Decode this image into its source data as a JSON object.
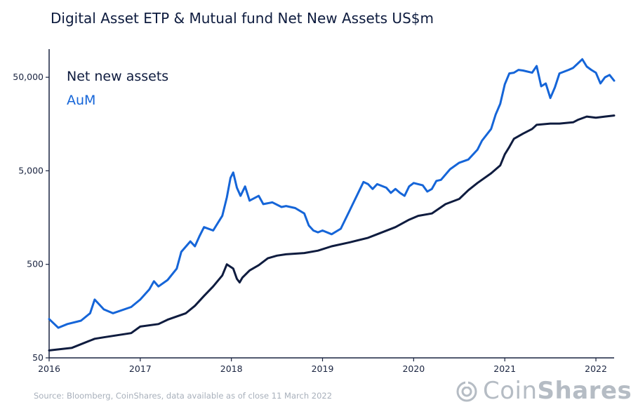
{
  "title": "Digital Asset ETP & Mutual fund Net New Assets US$m",
  "source": "Source: Bloomberg, CoinShares, data available as of close 11 March 2022",
  "logo": {
    "prefix": "Coin",
    "suffix": "Shares"
  },
  "colors": {
    "net_new_assets": "#0f1c3f",
    "aum": "#1565d8",
    "axis": "#1a2440"
  },
  "chart_data": {
    "type": "line",
    "title": "Digital Asset ETP & Mutual fund Net New Assets US$m",
    "y_scale": "log",
    "ylim": [
      50,
      100000
    ],
    "yticks": [
      50,
      500,
      5000,
      50000
    ],
    "ytick_labels": [
      "50",
      "500",
      "5,000",
      "50,000"
    ],
    "xlim": [
      2016.0,
      2022.2
    ],
    "xticks": [
      2016,
      2017,
      2018,
      2019,
      2020,
      2021,
      2022
    ],
    "xtick_labels": [
      "2016",
      "2017",
      "2018",
      "2019",
      "2020",
      "2021",
      "2022"
    ],
    "grid": false,
    "legend": "top-left",
    "series": [
      {
        "name": "Net new assets",
        "x": [
          2016.0,
          2016.25,
          2016.5,
          2016.6,
          2016.9,
          2017.0,
          2017.2,
          2017.3,
          2017.5,
          2017.6,
          2017.7,
          2017.8,
          2017.9,
          2017.95,
          2018.02,
          2018.06,
          2018.09,
          2018.12,
          2018.2,
          2018.3,
          2018.4,
          2018.5,
          2018.6,
          2018.8,
          2018.95,
          2019.1,
          2019.3,
          2019.5,
          2019.6,
          2019.8,
          2019.95,
          2020.05,
          2020.2,
          2020.35,
          2020.5,
          2020.6,
          2020.7,
          2020.85,
          2020.95,
          2021.0,
          2021.05,
          2021.1,
          2021.2,
          2021.3,
          2021.35,
          2021.5,
          2021.6,
          2021.75,
          2021.8,
          2021.9,
          2022.0,
          2022.1,
          2022.2
        ],
        "y": [
          60,
          64,
          80,
          83,
          92,
          108,
          115,
          128,
          150,
          180,
          230,
          290,
          380,
          500,
          450,
          350,
          320,
          360,
          430,
          490,
          580,
          620,
          640,
          660,
          700,
          780,
          860,
          960,
          1050,
          1250,
          1500,
          1650,
          1750,
          2200,
          2500,
          3100,
          3700,
          4700,
          5700,
          7500,
          9000,
          11000,
          12500,
          14000,
          15500,
          16000,
          16000,
          16500,
          17500,
          19000,
          18500,
          19000,
          19500
        ]
      },
      {
        "name": "AuM",
        "x": [
          2016.0,
          2016.1,
          2016.2,
          2016.35,
          2016.45,
          2016.5,
          2016.6,
          2016.7,
          2016.9,
          2017.0,
          2017.1,
          2017.15,
          2017.2,
          2017.3,
          2017.4,
          2017.45,
          2017.55,
          2017.6,
          2017.65,
          2017.7,
          2017.8,
          2017.9,
          2017.95,
          2017.99,
          2018.02,
          2018.06,
          2018.1,
          2018.15,
          2018.2,
          2018.3,
          2018.35,
          2018.45,
          2018.55,
          2018.6,
          2018.7,
          2018.8,
          2018.85,
          2018.9,
          2018.95,
          2019.0,
          2019.1,
          2019.2,
          2019.3,
          2019.35,
          2019.45,
          2019.5,
          2019.55,
          2019.6,
          2019.7,
          2019.75,
          2019.8,
          2019.85,
          2019.9,
          2019.95,
          2020.0,
          2020.1,
          2020.15,
          2020.2,
          2020.25,
          2020.3,
          2020.4,
          2020.5,
          2020.6,
          2020.7,
          2020.75,
          2020.85,
          2020.9,
          2020.95,
          2021.0,
          2021.05,
          2021.1,
          2021.15,
          2021.2,
          2021.3,
          2021.35,
          2021.4,
          2021.45,
          2021.5,
          2021.55,
          2021.6,
          2021.7,
          2021.75,
          2021.8,
          2021.85,
          2021.9,
          2021.95,
          2022.0,
          2022.05,
          2022.1,
          2022.15,
          2022.2
        ],
        "y": [
          130,
          105,
          115,
          125,
          150,
          210,
          165,
          150,
          175,
          210,
          270,
          330,
          290,
          340,
          450,
          680,
          880,
          780,
          1000,
          1250,
          1150,
          1650,
          2600,
          4200,
          4800,
          3300,
          2700,
          3400,
          2400,
          2700,
          2200,
          2300,
          2050,
          2100,
          2000,
          1750,
          1300,
          1150,
          1100,
          1150,
          1050,
          1200,
          1900,
          2400,
          3800,
          3600,
          3200,
          3600,
          3300,
          2900,
          3200,
          2900,
          2700,
          3400,
          3700,
          3500,
          3000,
          3200,
          3900,
          4000,
          5200,
          6100,
          6600,
          8400,
          10500,
          14000,
          20000,
          26000,
          42000,
          55000,
          56000,
          60000,
          59000,
          56000,
          66000,
          40000,
          43000,
          30000,
          39000,
          55000,
          60000,
          63000,
          70000,
          78000,
          65000,
          60000,
          56000,
          43000,
          50000,
          53000,
          46000
        ]
      }
    ]
  }
}
